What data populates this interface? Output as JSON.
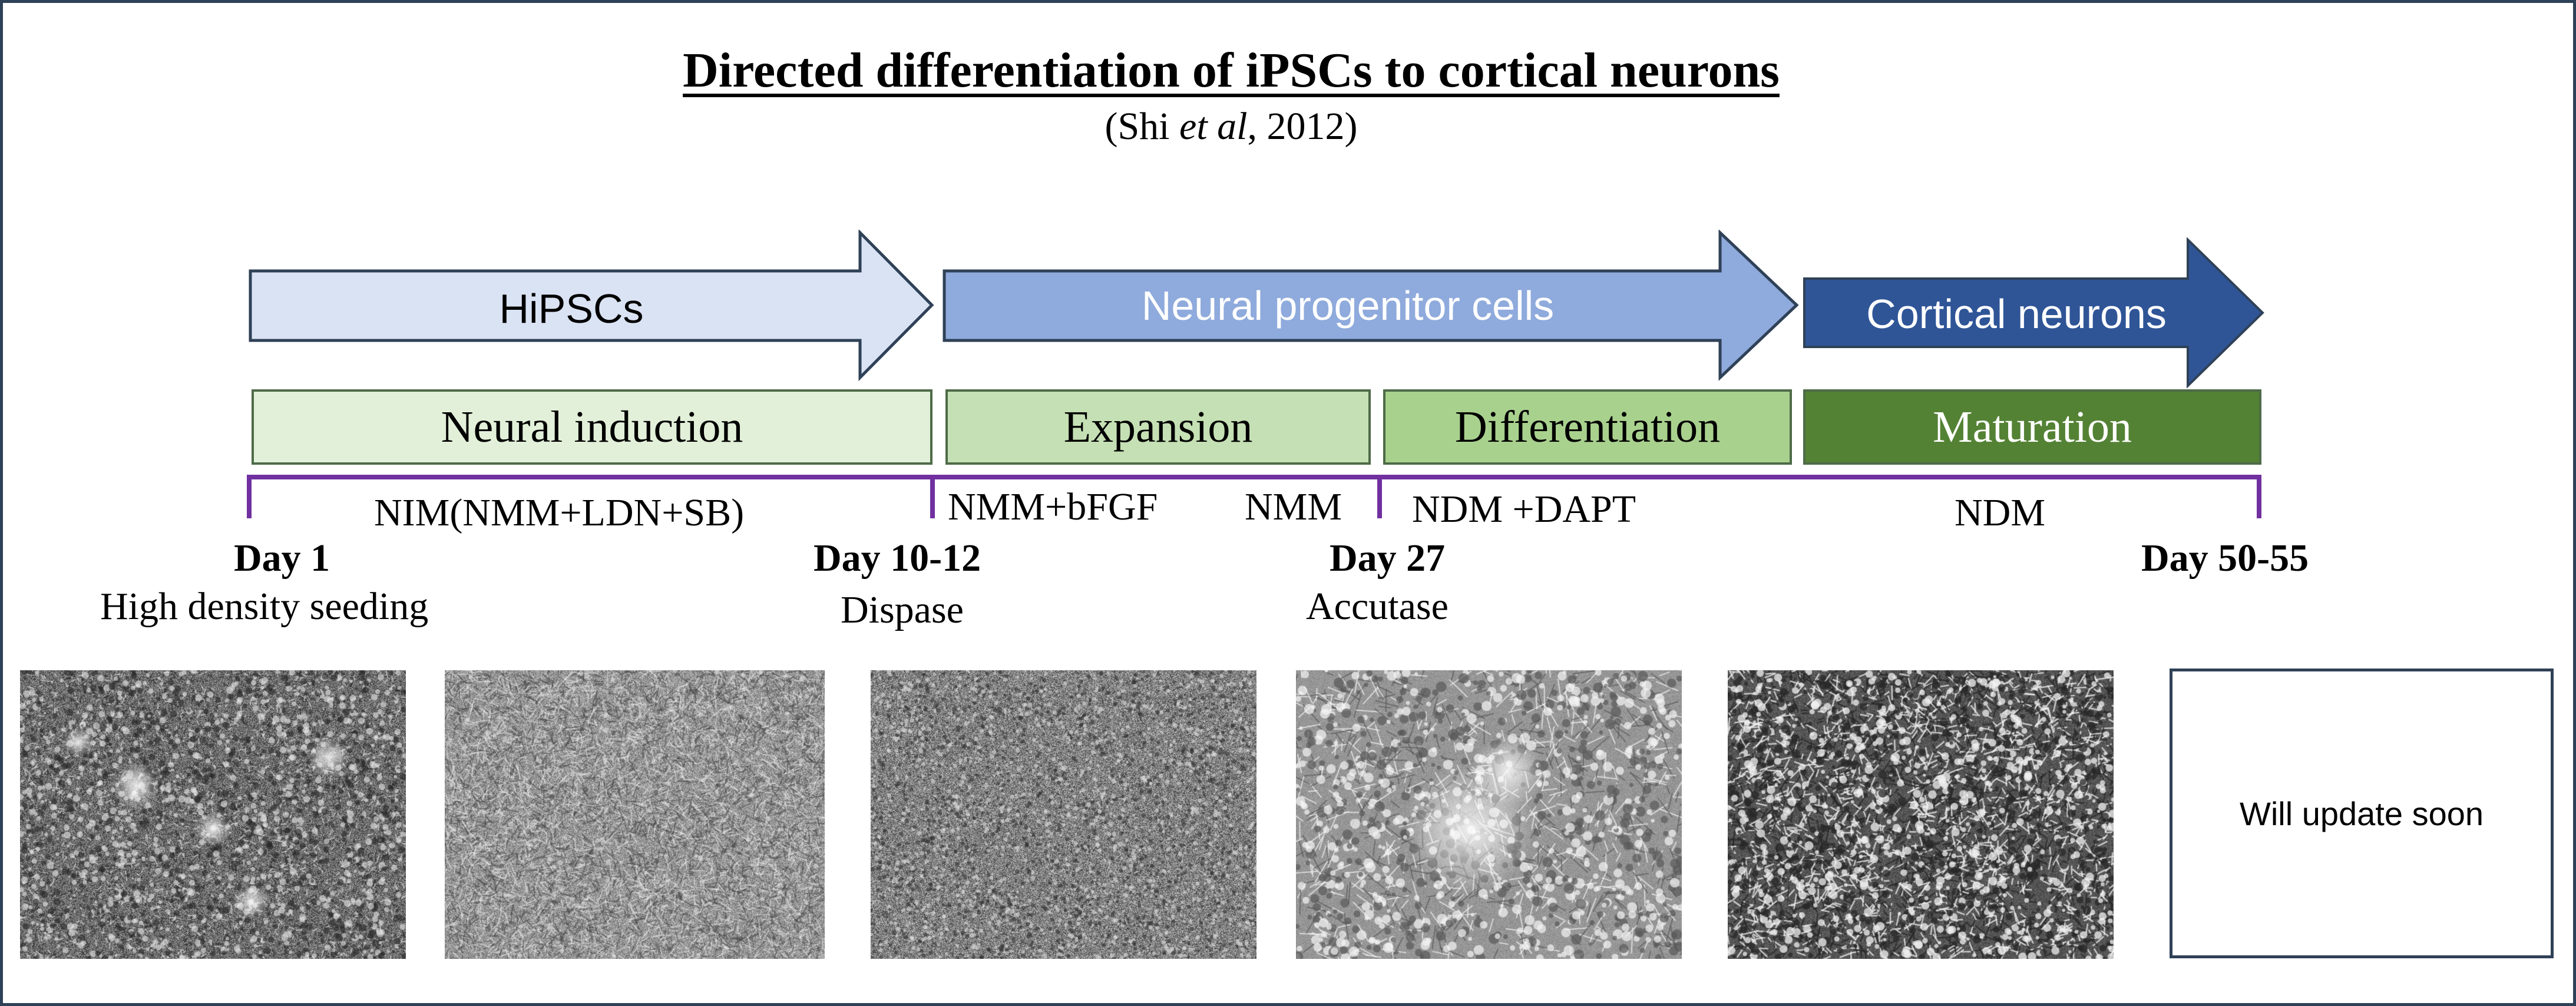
{
  "title": "Directed differentiation of iPSCs to cortical neurons",
  "citation": {
    "before": "(Shi ",
    "italic": "et al",
    "after": ", 2012)"
  },
  "cell_types": [
    {
      "label": "HiPSCs",
      "fill": "#dae3f3",
      "stroke": "#2f4157",
      "text_color": "#000000"
    },
    {
      "label": "Neural progenitor cells",
      "fill": "#8faadc",
      "stroke": "#2f4157",
      "text_color": "#ffffff"
    },
    {
      "label": "Cortical neurons",
      "fill": "#2f5597",
      "stroke": "#2f4157",
      "text_color": "#ffffff"
    }
  ],
  "stages": [
    {
      "label": "Neural induction",
      "fill": "#e2f0d9",
      "text_color": "#000000"
    },
    {
      "label": "Expansion",
      "fill": "#c5e0b4",
      "text_color": "#000000"
    },
    {
      "label": "Differentiation",
      "fill": "#a9d18e",
      "text_color": "#000000"
    },
    {
      "label": "Maturation",
      "fill": "#548235",
      "text_color": "#ffffff"
    }
  ],
  "timeline_color": "#7030a0",
  "media": [
    "NIM(NMM+LDN+SB)",
    "NMM+bFGF",
    "NMM",
    "NDM +DAPT",
    "NDM"
  ],
  "days": [
    "Day 1",
    "Day 10-12",
    "Day 27",
    "Day 50-55"
  ],
  "events": [
    "High density seeding",
    "Dispase",
    "Accutase"
  ],
  "micrographs": [
    {
      "name": "micrograph-1"
    },
    {
      "name": "micrograph-2"
    },
    {
      "name": "micrograph-3"
    },
    {
      "name": "micrograph-4"
    },
    {
      "name": "micrograph-5"
    }
  ],
  "placeholder_text": "Will update soon"
}
